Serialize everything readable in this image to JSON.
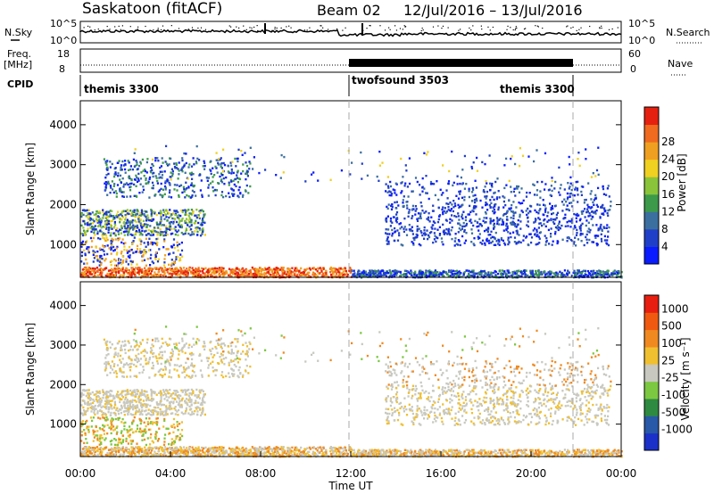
{
  "header": {
    "station": "Saskatoon (fitACF)",
    "beam": "Beam 02",
    "date_range": "12/Jul/2016 – 13/Jul/2016"
  },
  "top_panels": {
    "nsky_label": "N.Sky",
    "nsky_ticks": [
      "10^5",
      "10^0"
    ],
    "nsearch_label": "N.Search",
    "nsearch_ticks": [
      "10^5",
      "10^0"
    ],
    "freq_label_1": "Freq.",
    "freq_label_2": "[MHz]",
    "freq_ticks": [
      "18",
      "8"
    ],
    "nave_label": "Nave",
    "nave_ticks": [
      "60",
      "0"
    ],
    "cpid_label": "CPID",
    "cpid_modes": [
      {
        "name": "themis 3300",
        "start_hour": 0,
        "end_hour": 12
      },
      {
        "name": "twofsound 3503",
        "start_hour": 12,
        "end_hour": 22
      },
      {
        "name": "themis 3300",
        "start_hour": 22,
        "end_hour": 24
      }
    ]
  },
  "chart_data": [
    {
      "type": "heatmap",
      "title": "",
      "xlabel": "",
      "ylabel": "Slant Range [km]",
      "xlim": [
        0,
        24
      ],
      "ylim": [
        180,
        4600
      ],
      "yticks": [
        "1000",
        "2000",
        "3000",
        "4000"
      ],
      "colorbar": {
        "label": "Power [dB]",
        "ticks": [
          "4",
          "8",
          "12",
          "16",
          "20",
          "24",
          "28"
        ],
        "colors": [
          "#0a1cff",
          "#203fc8",
          "#3b6fa0",
          "#3c9a4a",
          "#8ac43a",
          "#f0d020",
          "#f0a020",
          "#f06a20",
          "#e62010"
        ]
      }
    },
    {
      "type": "heatmap",
      "title": "",
      "xlabel": "Time UT",
      "ylabel": "Slant Range [km]",
      "xlim": [
        0,
        24
      ],
      "ylim": [
        180,
        4600
      ],
      "xticks": [
        "00:00",
        "04:00",
        "08:00",
        "12:00",
        "16:00",
        "20:00",
        "00:00"
      ],
      "yticks": [
        "1000",
        "2000",
        "3000",
        "4000"
      ],
      "colorbar": {
        "label": "Velocity [m s⁻¹]",
        "ticks": [
          "1000",
          "500",
          "100",
          "25",
          "-25",
          "-100",
          "-500",
          "-1000"
        ],
        "colors": [
          "#1a30c8",
          "#2858a8",
          "#2e8a40",
          "#7cc840",
          "#c8c8c0",
          "#f0c030",
          "#f08a20",
          "#f05a10",
          "#e81e10"
        ]
      }
    }
  ]
}
